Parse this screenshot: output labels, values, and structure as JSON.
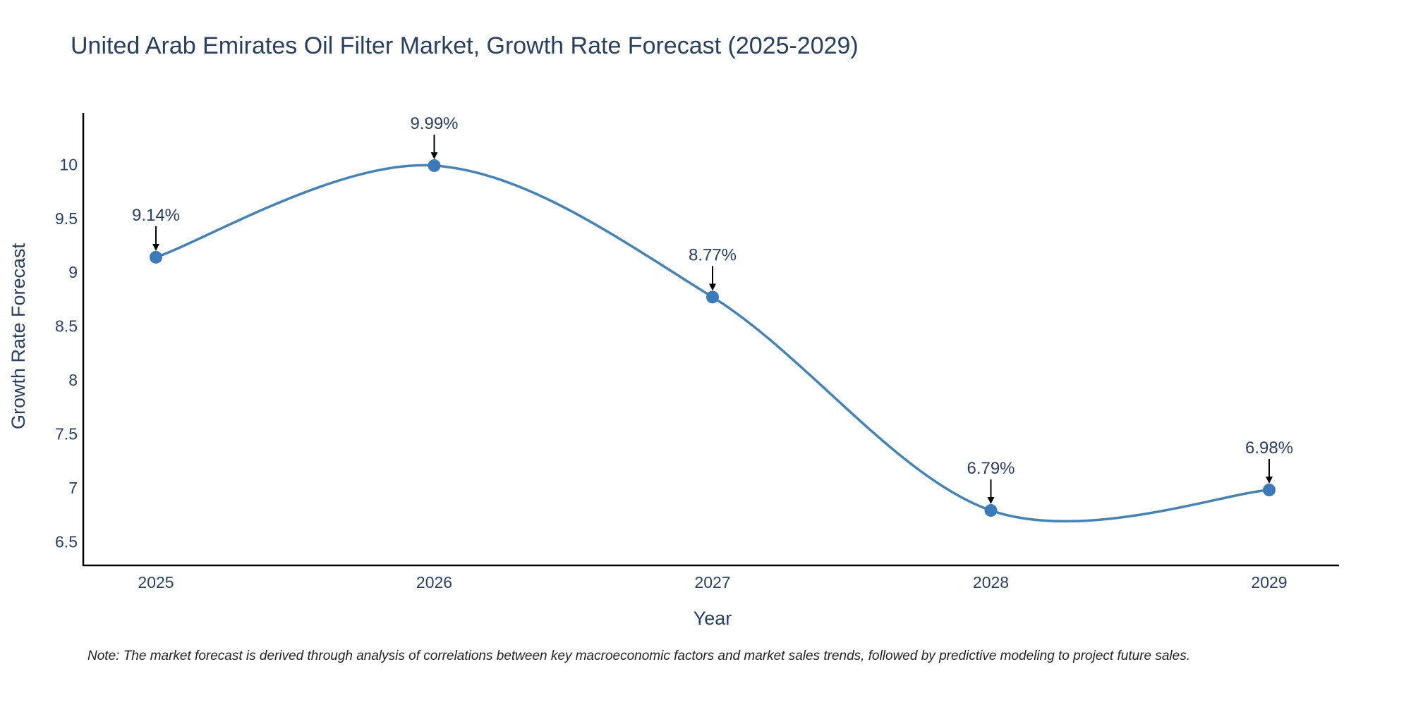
{
  "chart_data": {
    "type": "line",
    "title": "United Arab Emirates Oil Filter Market, Growth Rate Forecast (2025-2029)",
    "xlabel": "Year",
    "ylabel": "Growth Rate Forecast",
    "categories": [
      "2025",
      "2026",
      "2027",
      "2028",
      "2029"
    ],
    "series": [
      {
        "name": "Growth Rate Forecast",
        "values": [
          9.14,
          9.99,
          8.77,
          6.79,
          6.98
        ],
        "labels": [
          "9.14%",
          "9.99%",
          "8.77%",
          "6.79%",
          "6.98%"
        ]
      }
    ],
    "yticks": [
      6.5,
      7,
      7.5,
      8,
      8.5,
      9,
      9.5,
      10
    ],
    "ytick_labels": [
      "6.5",
      "7",
      "7.5",
      "8",
      "8.5",
      "9",
      "9.5",
      "10"
    ],
    "ylim": [
      6.28,
      10.48
    ],
    "grid": false,
    "line_shape": "spline",
    "line_color": "#4682b4",
    "marker_color": "#3a7ab8",
    "annotation_arrow_color": "#000000",
    "axis_color": "#000000"
  },
  "note": "Note: The market forecast is derived through analysis of correlations between key macroeconomic factors and market sales trends, followed by predictive modeling to project future sales."
}
